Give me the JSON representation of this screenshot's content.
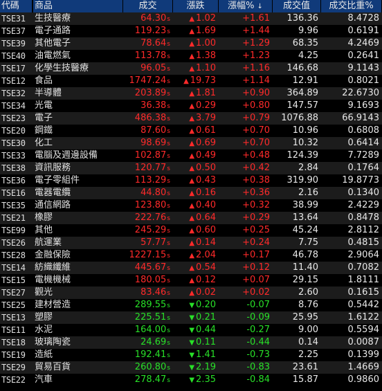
{
  "columns": {
    "code": "代碼",
    "name": "商品",
    "last": "成交",
    "change": "漲跌",
    "pct": "漲幅%",
    "volume": "成交值",
    "ratio": "成交比重%"
  },
  "sort_icon": "sort-arrow-icon",
  "suffix": "s",
  "colors": {
    "up": "#ff2a2a",
    "down": "#28e028",
    "header_bg": "#103a7a"
  },
  "rows": [
    {
      "code": "TSE31",
      "name": "生技醫療",
      "last": "64.30",
      "dir": "up",
      "change": "1.02",
      "pct": "+1.61",
      "volume": "136.36",
      "ratio": "8.4728"
    },
    {
      "code": "TSE37",
      "name": "電子通路",
      "last": "119.23",
      "dir": "up",
      "change": "1.69",
      "pct": "+1.44",
      "volume": "9.96",
      "ratio": "0.6191"
    },
    {
      "code": "TSE39",
      "name": "其他電子",
      "last": "78.64",
      "dir": "up",
      "change": "1.00",
      "pct": "+1.29",
      "volume": "68.35",
      "ratio": "4.2469"
    },
    {
      "code": "TSE40",
      "name": "油電燃氣",
      "last": "113.78",
      "dir": "up",
      "change": "1.38",
      "pct": "+1.23",
      "volume": "4.25",
      "ratio": "0.2641"
    },
    {
      "code": "TSE17",
      "name": "化學生技醫療",
      "last": "96.05",
      "dir": "up",
      "change": "1.10",
      "pct": "+1.16",
      "volume": "146.68",
      "ratio": "9.1143"
    },
    {
      "code": "TSE12",
      "name": "食品",
      "last": "1747.24",
      "dir": "up",
      "change": "19.73",
      "pct": "+1.14",
      "volume": "12.91",
      "ratio": "0.8021"
    },
    {
      "code": "TSE32",
      "name": "半導體",
      "last": "203.89",
      "dir": "up",
      "change": "1.81",
      "pct": "+0.90",
      "volume": "364.89",
      "ratio": "22.6730"
    },
    {
      "code": "TSE34",
      "name": "光電",
      "last": "36.38",
      "dir": "up",
      "change": "0.29",
      "pct": "+0.80",
      "volume": "147.57",
      "ratio": "9.1693"
    },
    {
      "code": "TSE23",
      "name": "電子",
      "last": "486.38",
      "dir": "up",
      "change": "3.79",
      "pct": "+0.79",
      "volume": "1076.88",
      "ratio": "66.9143"
    },
    {
      "code": "TSE20",
      "name": "鋼鐵",
      "last": "87.60",
      "dir": "up",
      "change": "0.61",
      "pct": "+0.70",
      "volume": "10.96",
      "ratio": "0.6808"
    },
    {
      "code": "TSE30",
      "name": "化工",
      "last": "98.69",
      "dir": "up",
      "change": "0.69",
      "pct": "+0.70",
      "volume": "10.32",
      "ratio": "0.6414"
    },
    {
      "code": "TSE33",
      "name": "電腦及週邊設備",
      "last": "102.87",
      "dir": "up",
      "change": "0.49",
      "pct": "+0.48",
      "volume": "124.39",
      "ratio": "7.7289"
    },
    {
      "code": "TSE38",
      "name": "資訊服務",
      "last": "120.77",
      "dir": "up",
      "change": "0.50",
      "pct": "+0.42",
      "volume": "2.84",
      "ratio": "0.1764"
    },
    {
      "code": "TSE36",
      "name": "電子零組件",
      "last": "113.29",
      "dir": "up",
      "change": "0.43",
      "pct": "+0.38",
      "volume": "319.90",
      "ratio": "19.8773"
    },
    {
      "code": "TSE16",
      "name": "電器電纜",
      "last": "44.80",
      "dir": "up",
      "change": "0.16",
      "pct": "+0.36",
      "volume": "2.16",
      "ratio": "0.1340"
    },
    {
      "code": "TSE35",
      "name": "通信網路",
      "last": "123.80",
      "dir": "up",
      "change": "0.40",
      "pct": "+0.32",
      "volume": "38.99",
      "ratio": "2.4229"
    },
    {
      "code": "TSE21",
      "name": "橡膠",
      "last": "222.76",
      "dir": "up",
      "change": "0.64",
      "pct": "+0.29",
      "volume": "13.64",
      "ratio": "0.8478"
    },
    {
      "code": "TSE99",
      "name": "其他",
      "last": "245.29",
      "dir": "up",
      "change": "0.60",
      "pct": "+0.25",
      "volume": "45.24",
      "ratio": "2.8112"
    },
    {
      "code": "TSE26",
      "name": "航運業",
      "last": "57.77",
      "dir": "up",
      "change": "0.14",
      "pct": "+0.24",
      "volume": "7.75",
      "ratio": "0.4815"
    },
    {
      "code": "TSE28",
      "name": "金融保險",
      "last": "1227.15",
      "dir": "up",
      "change": "2.04",
      "pct": "+0.17",
      "volume": "46.78",
      "ratio": "2.9064"
    },
    {
      "code": "TSE14",
      "name": "紡織纖維",
      "last": "445.67",
      "dir": "up",
      "change": "0.54",
      "pct": "+0.12",
      "volume": "11.40",
      "ratio": "0.7082"
    },
    {
      "code": "TSE15",
      "name": "電機機械",
      "last": "180.05",
      "dir": "up",
      "change": "0.12",
      "pct": "+0.07",
      "volume": "29.15",
      "ratio": "1.8111"
    },
    {
      "code": "TSE27",
      "name": "觀光",
      "last": "83.46",
      "dir": "up",
      "change": "0.02",
      "pct": "+0.02",
      "volume": "2.60",
      "ratio": "0.1615"
    },
    {
      "code": "TSE25",
      "name": "建材營造",
      "last": "289.55",
      "dir": "down",
      "change": "0.20",
      "pct": "-0.07",
      "volume": "8.76",
      "ratio": "0.5442"
    },
    {
      "code": "TSE13",
      "name": "塑膠",
      "last": "225.51",
      "dir": "down",
      "change": "0.21",
      "pct": "-0.09",
      "volume": "25.95",
      "ratio": "1.6122"
    },
    {
      "code": "TSE11",
      "name": "水泥",
      "last": "164.00",
      "dir": "down",
      "change": "0.44",
      "pct": "-0.27",
      "volume": "9.00",
      "ratio": "0.5594"
    },
    {
      "code": "TSE18",
      "name": "玻璃陶瓷",
      "last": "24.69",
      "dir": "down",
      "change": "0.11",
      "pct": "-0.44",
      "volume": "0.14",
      "ratio": "0.0087"
    },
    {
      "code": "TSE19",
      "name": "造紙",
      "last": "192.41",
      "dir": "down",
      "change": "1.41",
      "pct": "-0.73",
      "volume": "2.25",
      "ratio": "0.1399"
    },
    {
      "code": "TSE29",
      "name": "貿易百貨",
      "last": "260.80",
      "dir": "down",
      "change": "2.19",
      "pct": "-0.83",
      "volume": "23.61",
      "ratio": "1.4669"
    },
    {
      "code": "TSE22",
      "name": "汽車",
      "last": "278.47",
      "dir": "down",
      "change": "2.35",
      "pct": "-0.84",
      "volume": "15.87",
      "ratio": "0.9860"
    }
  ]
}
